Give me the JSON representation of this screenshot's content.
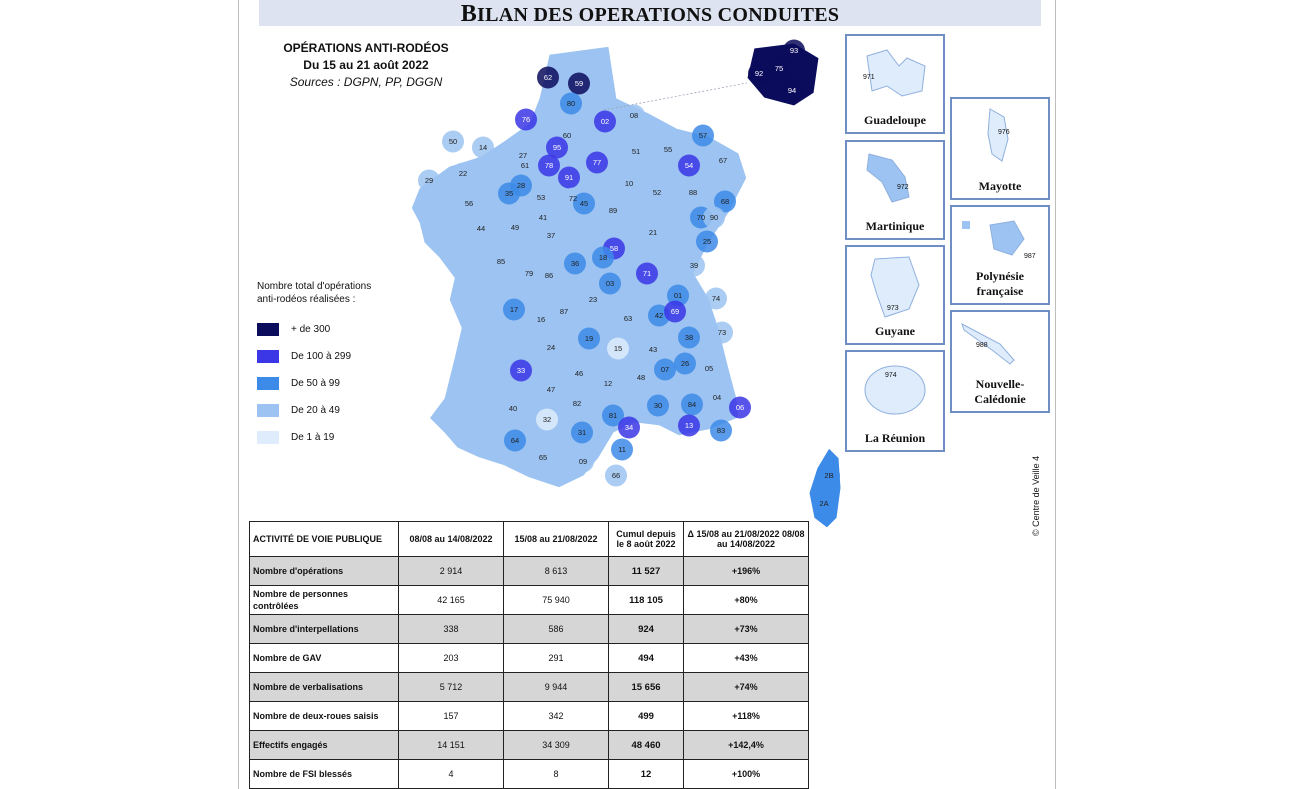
{
  "banner": {
    "first": "B",
    "rest": "ILAN DES OPERATIONS CONDUITES"
  },
  "map_title": {
    "line1": "OPÉRATIONS ANTI-RODÉOS",
    "line2": "Du 15 au 21 août 2022",
    "sources": "Sources : DGPN, PP, DGGN"
  },
  "legend": {
    "title_line1": "Nombre total d'opérations",
    "title_line2": "anti-rodéos réalisées :",
    "items": [
      {
        "label": "+ de 300",
        "color": "#0c0c5c"
      },
      {
        "label": "De 100 à 299",
        "color": "#3b36e6"
      },
      {
        "label": "De 50 à 99",
        "color": "#3d8be8"
      },
      {
        "label": "De 20 à 49",
        "color": "#9cc3f1"
      },
      {
        "label": "De 1 à 19",
        "color": "#deecfb"
      }
    ]
  },
  "departments": [
    {
      "code": "62",
      "level": 1
    },
    {
      "code": "59",
      "level": 1
    },
    {
      "code": "80",
      "level": 3
    },
    {
      "code": "76",
      "level": 2
    },
    {
      "code": "02",
      "level": 2
    },
    {
      "code": "08",
      "level": 4
    },
    {
      "code": "60",
      "level": 4
    },
    {
      "code": "50",
      "level": 4
    },
    {
      "code": "14",
      "level": 4
    },
    {
      "code": "27",
      "level": 4
    },
    {
      "code": "95",
      "level": 2
    },
    {
      "code": "78",
      "level": 2
    },
    {
      "code": "77",
      "level": 2
    },
    {
      "code": "91",
      "level": 2
    },
    {
      "code": "51",
      "level": 4
    },
    {
      "code": "55",
      "level": 4
    },
    {
      "code": "57",
      "level": 3
    },
    {
      "code": "54",
      "level": 2
    },
    {
      "code": "67",
      "level": 4
    },
    {
      "code": "29",
      "level": 4
    },
    {
      "code": "22",
      "level": 4
    },
    {
      "code": "56",
      "level": 4
    },
    {
      "code": "35",
      "level": 3
    },
    {
      "code": "53",
      "level": 4
    },
    {
      "code": "61",
      "level": 4
    },
    {
      "code": "72",
      "level": 4
    },
    {
      "code": "28",
      "level": 3
    },
    {
      "code": "45",
      "level": 3
    },
    {
      "code": "10",
      "level": 4
    },
    {
      "code": "52",
      "level": 4
    },
    {
      "code": "88",
      "level": 4
    },
    {
      "code": "68",
      "level": 3
    },
    {
      "code": "89",
      "level": 4
    },
    {
      "code": "70",
      "level": 3
    },
    {
      "code": "90",
      "level": 4
    },
    {
      "code": "44",
      "level": 4
    },
    {
      "code": "49",
      "level": 4
    },
    {
      "code": "37",
      "level": 4
    },
    {
      "code": "41",
      "level": 4
    },
    {
      "code": "21",
      "level": 4
    },
    {
      "code": "25",
      "level": 3
    },
    {
      "code": "58",
      "level": 2
    },
    {
      "code": "39",
      "level": 4
    },
    {
      "code": "85",
      "level": 4
    },
    {
      "code": "79",
      "level": 4
    },
    {
      "code": "86",
      "level": 4
    },
    {
      "code": "36",
      "level": 3
    },
    {
      "code": "18",
      "level": 3
    },
    {
      "code": "71",
      "level": 2
    },
    {
      "code": "03",
      "level": 3
    },
    {
      "code": "01",
      "level": 3
    },
    {
      "code": "74",
      "level": 4
    },
    {
      "code": "17",
      "level": 3
    },
    {
      "code": "16",
      "level": 4
    },
    {
      "code": "87",
      "level": 4
    },
    {
      "code": "23",
      "level": 4
    },
    {
      "code": "63",
      "level": 4
    },
    {
      "code": "42",
      "level": 3
    },
    {
      "code": "69",
      "level": 2
    },
    {
      "code": "73",
      "level": 4
    },
    {
      "code": "38",
      "level": 3
    },
    {
      "code": "19",
      "level": 3
    },
    {
      "code": "15",
      "level": 5
    },
    {
      "code": "43",
      "level": 4
    },
    {
      "code": "24",
      "level": 4
    },
    {
      "code": "33",
      "level": 2
    },
    {
      "code": "46",
      "level": 4
    },
    {
      "code": "12",
      "level": 4
    },
    {
      "code": "48",
      "level": 4
    },
    {
      "code": "07",
      "level": 3
    },
    {
      "code": "26",
      "level": 3
    },
    {
      "code": "05",
      "level": 4
    },
    {
      "code": "47",
      "level": 4
    },
    {
      "code": "82",
      "level": 4
    },
    {
      "code": "81",
      "level": 3
    },
    {
      "code": "30",
      "level": 3
    },
    {
      "code": "84",
      "level": 3
    },
    {
      "code": "04",
      "level": 4
    },
    {
      "code": "06",
      "level": 2
    },
    {
      "code": "40",
      "level": 4
    },
    {
      "code": "32",
      "level": 5
    },
    {
      "code": "31",
      "level": 3
    },
    {
      "code": "34",
      "level": 2
    },
    {
      "code": "13",
      "level": 2
    },
    {
      "code": "83",
      "level": 3
    },
    {
      "code": "64",
      "level": 3
    },
    {
      "code": "65",
      "level": 4
    },
    {
      "code": "09",
      "level": 4
    },
    {
      "code": "11",
      "level": 3
    },
    {
      "code": "66",
      "level": 4
    },
    {
      "code": "2B",
      "level": 3
    },
    {
      "code": "2A",
      "level": 3
    },
    {
      "code": "92",
      "level": 1
    },
    {
      "code": "75",
      "level": 1
    },
    {
      "code": "93",
      "level": 1
    },
    {
      "code": "94",
      "level": 1
    }
  ],
  "overseas": [
    {
      "code": "971",
      "name": "Guadeloupe"
    },
    {
      "code": "972",
      "name": "Martinique"
    },
    {
      "code": "973",
      "name": "Guyane"
    },
    {
      "code": "974",
      "name": "La Réunion"
    },
    {
      "code": "976",
      "name": "Mayotte"
    },
    {
      "code": "987",
      "name": "Polynésie française"
    },
    {
      "code": "988",
      "name": "Nouvelle-Calédonie"
    }
  ],
  "credit": "© Centre de Veille 4",
  "table": {
    "headers": [
      "ACTIVITÉ DE VOIE PUBLIQUE",
      "08/08 au 14/08/2022",
      "15/08 au 21/08/2022",
      "Cumul depuis le 8 août 2022",
      "Δ 15/08 au 21/08/2022 08/08 au 14/08/2022"
    ],
    "rows": [
      {
        "label": "Nombre d'opérations",
        "prev": "2 914",
        "cur": "8 613",
        "cumul": "11 527",
        "var": "+196%"
      },
      {
        "label": "Nombre de personnes contrôlées",
        "prev": "42 165",
        "cur": "75 940",
        "cumul": "118 105",
        "var": "+80%"
      },
      {
        "label": "Nombre d'interpellations",
        "prev": "338",
        "cur": "586",
        "cumul": "924",
        "var": "+73%"
      },
      {
        "label": "Nombre de GAV",
        "prev": "203",
        "cur": "291",
        "cumul": "494",
        "var": "+43%"
      },
      {
        "label": "Nombre de verbalisations",
        "prev": "5 712",
        "cur": "9 944",
        "cumul": "15 656",
        "var": "+74%"
      },
      {
        "label": "Nombre de deux-roues saisis",
        "prev": "157",
        "cur": "342",
        "cumul": "499",
        "var": "+118%"
      },
      {
        "label": "Effectifs engagés",
        "prev": "14 151",
        "cur": "34 309",
        "cumul": "48 460",
        "var": "+142,4%"
      },
      {
        "label": "Nombre de FSI blessés",
        "prev": "4",
        "cur": "8",
        "cumul": "12",
        "var": "+100%"
      }
    ]
  }
}
